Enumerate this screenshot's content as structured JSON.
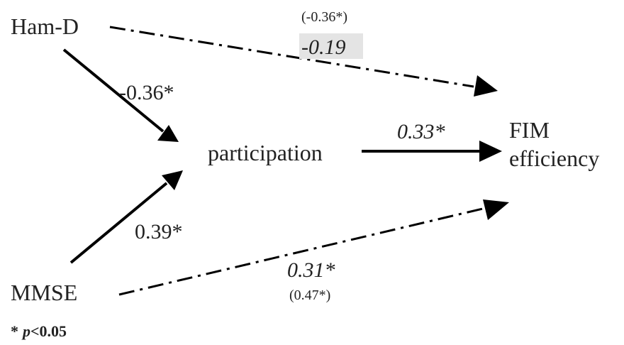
{
  "nodes": [
    {
      "label": "Ham-D"
    },
    {
      "label": "participation"
    },
    {
      "label": [
        "FIM",
        "efficiency"
      ]
    },
    {
      "label": "MMSE"
    }
  ],
  "edges": [
    {
      "label": "-0.36*"
    },
    {
      "label": "0.39*"
    },
    {
      "label": "0.33*"
    },
    {
      "label": "-0.19",
      "total": "(-0.36*)"
    },
    {
      "label": "0.31*",
      "total": "(0.47*)"
    }
  ],
  "footnote": [
    "*",
    "p",
    "<0.05"
  ]
}
